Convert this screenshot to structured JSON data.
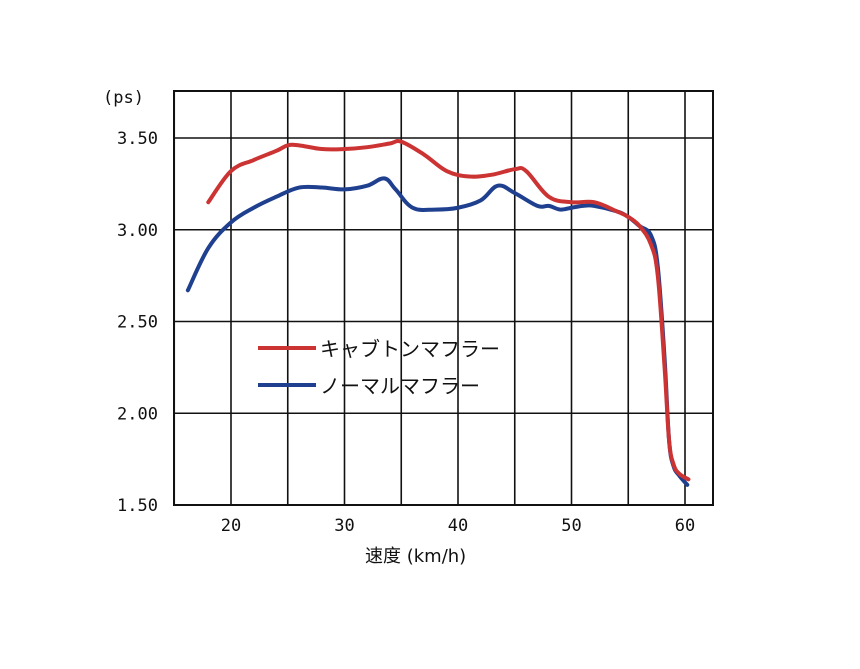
{
  "chart_data": {
    "type": "line",
    "ylabel": "(ps)",
    "xlabel": "速度 (km/h)",
    "xlim": [
      15,
      62
    ],
    "ylim": [
      1.5,
      3.7
    ],
    "x_ticks": [
      20,
      30,
      40,
      50,
      60
    ],
    "y_ticks": [
      {
        "value": 1.5,
        "label": "1.50"
      },
      {
        "value": 2.0,
        "label": "2.00"
      },
      {
        "value": 2.5,
        "label": "2.50"
      },
      {
        "value": 3.0,
        "label": "3.00"
      },
      {
        "value": 3.5,
        "label": "3.50"
      }
    ],
    "grid": true,
    "legend_position": "center-left",
    "series": [
      {
        "name": "キャブトンマフラー",
        "color": "#cc3333",
        "x": [
          18,
          20,
          22,
          24,
          25,
          26,
          28,
          30,
          32,
          34,
          35,
          37,
          39,
          41,
          43,
          45,
          46,
          48,
          50,
          52,
          54,
          55,
          56,
          57,
          57.6,
          58.2,
          58.6,
          59,
          59.5,
          60.3
        ],
        "y": [
          3.15,
          3.32,
          3.38,
          3.43,
          3.46,
          3.46,
          3.44,
          3.44,
          3.45,
          3.47,
          3.48,
          3.41,
          3.32,
          3.29,
          3.3,
          3.33,
          3.32,
          3.18,
          3.15,
          3.15,
          3.1,
          3.07,
          3.02,
          2.92,
          2.75,
          2.25,
          1.85,
          1.72,
          1.67,
          1.64
        ]
      },
      {
        "name": "ノーマルマフラー",
        "color": "#1f3f8f",
        "x": [
          16.2,
          18,
          20,
          22,
          24,
          26,
          28,
          30,
          32,
          33.5,
          34.5,
          36,
          38,
          40,
          42,
          43.5,
          45,
          47,
          48,
          49,
          50,
          51,
          52,
          54,
          55,
          56,
          57,
          57.6,
          58.2,
          58.6,
          59,
          59.5,
          60.2
        ],
        "y": [
          2.67,
          2.9,
          3.04,
          3.12,
          3.18,
          3.23,
          3.23,
          3.22,
          3.24,
          3.28,
          3.22,
          3.12,
          3.11,
          3.12,
          3.16,
          3.24,
          3.2,
          3.13,
          3.13,
          3.11,
          3.12,
          3.13,
          3.13,
          3.1,
          3.07,
          3.02,
          2.97,
          2.8,
          2.3,
          1.85,
          1.71,
          1.66,
          1.61
        ]
      }
    ]
  }
}
